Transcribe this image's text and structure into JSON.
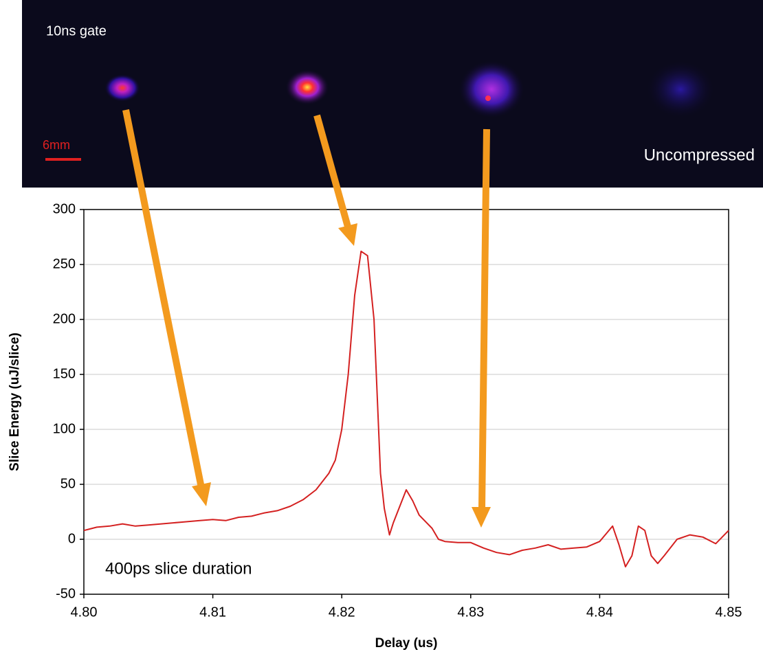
{
  "image": {
    "gate_label": "10ns gate",
    "scale_label": "6mm",
    "caption": "Uncompressed"
  },
  "chart_data": {
    "type": "line",
    "x_label": "Delay (us)",
    "y_label": "Slice Energy (uJ/slice)",
    "annotation": "400ps slice duration",
    "color": "#d42020",
    "grid": true,
    "xlim": [
      4.8,
      4.85
    ],
    "ylim": [
      -50,
      300
    ],
    "xticks": [
      {
        "value": 4.8,
        "label": "4.80"
      },
      {
        "value": 4.81,
        "label": "4.81"
      },
      {
        "value": 4.82,
        "label": "4.82"
      },
      {
        "value": 4.83,
        "label": "4.83"
      },
      {
        "value": 4.84,
        "label": "4.84"
      },
      {
        "value": 4.85,
        "label": "4.85"
      }
    ],
    "yticks": [
      -50,
      0,
      50,
      100,
      150,
      200,
      250,
      300
    ],
    "x": [
      4.8,
      4.801,
      4.802,
      4.803,
      4.804,
      4.805,
      4.806,
      4.807,
      4.808,
      4.809,
      4.81,
      4.811,
      4.812,
      4.813,
      4.814,
      4.815,
      4.816,
      4.817,
      4.818,
      4.819,
      4.8195,
      4.82,
      4.8205,
      4.821,
      4.8215,
      4.822,
      4.8225,
      4.823,
      4.8233,
      4.8237,
      4.824,
      4.8245,
      4.825,
      4.8255,
      4.826,
      4.827,
      4.8275,
      4.828,
      4.829,
      4.83,
      4.831,
      4.832,
      4.833,
      4.834,
      4.835,
      4.836,
      4.837,
      4.838,
      4.839,
      4.84,
      4.8405,
      4.841,
      4.8415,
      4.842,
      4.8425,
      4.843,
      4.8435,
      4.844,
      4.8445,
      4.845,
      4.846,
      4.847,
      4.848,
      4.849,
      4.85
    ],
    "values": [
      8,
      11,
      12,
      14,
      12,
      13,
      14,
      15,
      16,
      17,
      18,
      17,
      20,
      21,
      24,
      26,
      30,
      36,
      45,
      60,
      72,
      100,
      150,
      222,
      262,
      258,
      200,
      60,
      28,
      4,
      15,
      30,
      45,
      35,
      22,
      10,
      0,
      -2,
      -3,
      -3,
      -8,
      -12,
      -14,
      -10,
      -8,
      -5,
      -9,
      -8,
      -7,
      -2,
      5,
      12,
      -5,
      -25,
      -15,
      12,
      8,
      -15,
      -22,
      -15,
      0,
      4,
      2,
      -4,
      8
    ]
  }
}
